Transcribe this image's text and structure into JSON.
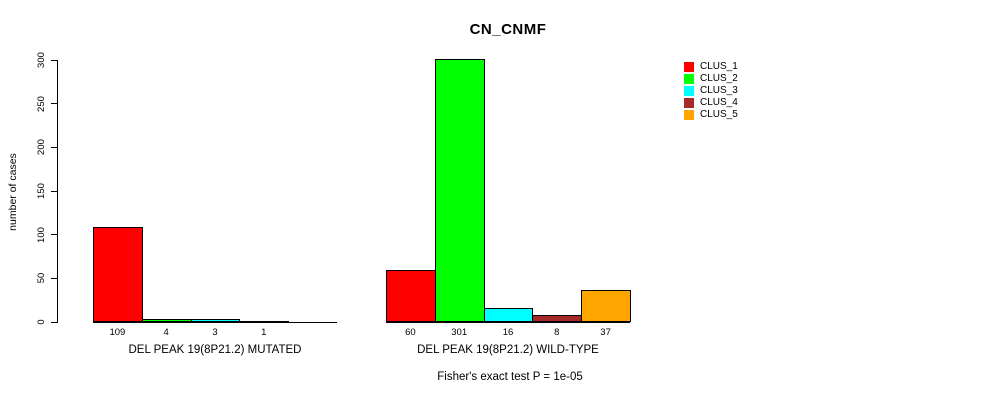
{
  "title": "CN_CNMF",
  "ylabel": "number of cases",
  "footer": "Fisher's exact test P = 1e-05",
  "legend": {
    "items": [
      {
        "label": "CLUS_1",
        "color": "#ff0000"
      },
      {
        "label": "CLUS_2",
        "color": "#00ff00"
      },
      {
        "label": "CLUS_3",
        "color": "#00ffff"
      },
      {
        "label": "CLUS_4",
        "color": "#a52a2a"
      },
      {
        "label": "CLUS_5",
        "color": "#ffa500"
      }
    ]
  },
  "chart_data": {
    "type": "bar",
    "title": "CN_CNMF",
    "ylabel": "number of cases",
    "xlabel": "",
    "ylim": [
      0,
      300
    ],
    "yticks": [
      0,
      50,
      100,
      150,
      200,
      250,
      300
    ],
    "grid": false,
    "legend_position": "right",
    "legend_entries": [
      "CLUS_1",
      "CLUS_2",
      "CLUS_3",
      "CLUS_4",
      "CLUS_5"
    ],
    "colors": [
      "#ff0000",
      "#00ff00",
      "#00ffff",
      "#a52a2a",
      "#ffa500"
    ],
    "groups": [
      {
        "label": "DEL PEAK 19(8P21.2) MUTATED",
        "categories": [
          "CLUS_1",
          "CLUS_2",
          "CLUS_3",
          "CLUS_4"
        ],
        "values": [
          109,
          4,
          3,
          1
        ]
      },
      {
        "label": "DEL PEAK 19(8P21.2) WILD-TYPE",
        "categories": [
          "CLUS_1",
          "CLUS_2",
          "CLUS_3",
          "CLUS_4",
          "CLUS_5"
        ],
        "values": [
          60,
          301,
          16,
          8,
          37
        ]
      }
    ],
    "annotation": "Fisher's exact test P = 1e-05"
  }
}
